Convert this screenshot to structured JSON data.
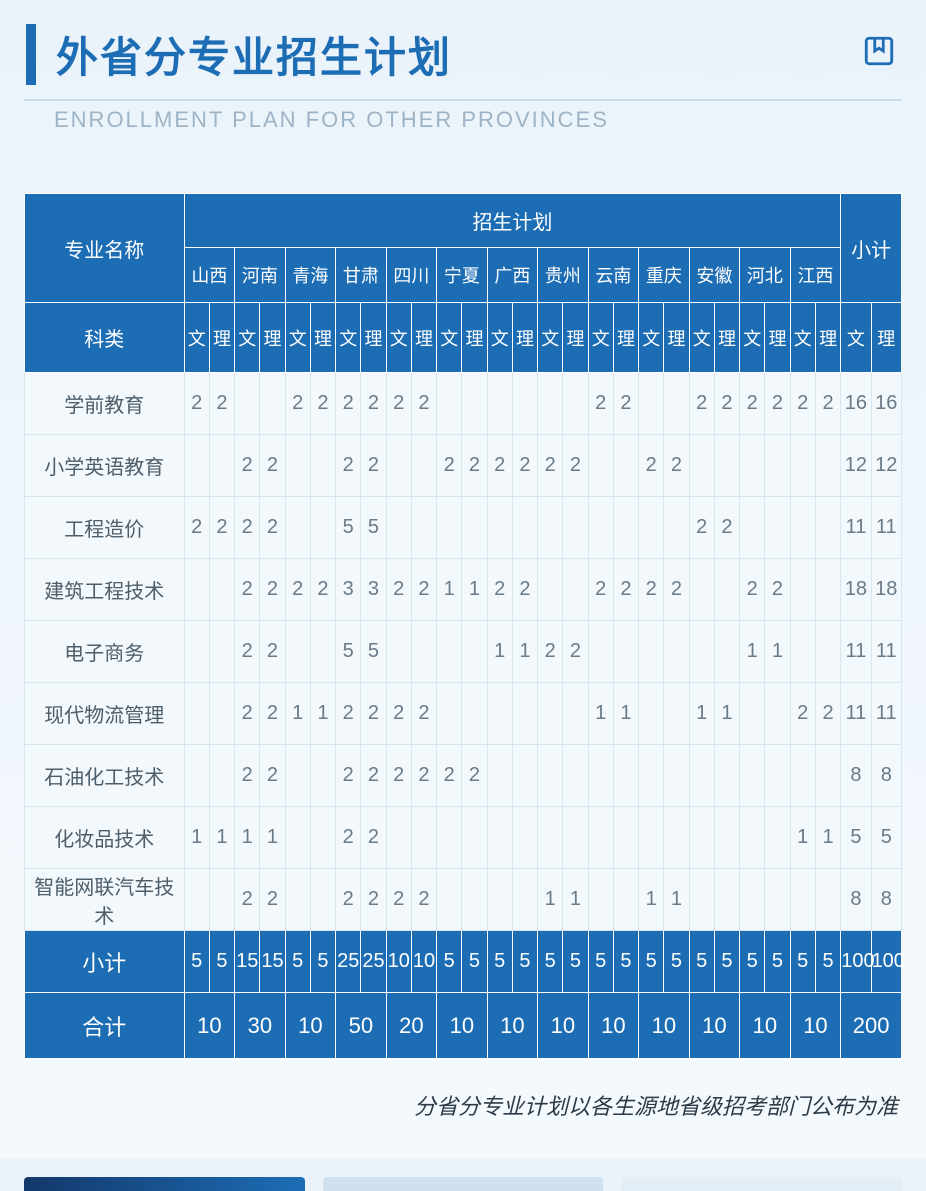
{
  "header": {
    "title_cn": "外省分专业招生计划",
    "title_en": "ENROLLMENT PLAN FOR OTHER PROVINCES"
  },
  "table": {
    "col_major": "专业名称",
    "col_plan": "招生计划",
    "col_subtotal": "小计",
    "col_category": "科类",
    "wen": "文",
    "li": "理",
    "provinces": [
      "山西",
      "河南",
      "青海",
      "甘肃",
      "四川",
      "宁夏",
      "广西",
      "贵州",
      "云南",
      "重庆",
      "安徽",
      "河北",
      "江西"
    ],
    "majors": [
      {
        "name": "学前教育",
        "cells": [
          "2",
          "2",
          "",
          "",
          "2",
          "2",
          "2",
          "2",
          "2",
          "2",
          "",
          "",
          "",
          "",
          "",
          "",
          "2",
          "2",
          "",
          "",
          "2",
          "2",
          "2",
          "2",
          "2",
          "2"
        ],
        "subW": "16",
        "subL": "16"
      },
      {
        "name": "小学英语教育",
        "cells": [
          "",
          "",
          "2",
          "2",
          "",
          "",
          "2",
          "2",
          "",
          "",
          "2",
          "2",
          "2",
          "2",
          "2",
          "2",
          "",
          "",
          "2",
          "2",
          "",
          "",
          "",
          "",
          "",
          ""
        ],
        "subW": "12",
        "subL": "12"
      },
      {
        "name": "工程造价",
        "cells": [
          "2",
          "2",
          "2",
          "2",
          "",
          "",
          "5",
          "5",
          "",
          "",
          "",
          "",
          "",
          "",
          "",
          "",
          "",
          "",
          "",
          "",
          "2",
          "2",
          "",
          "",
          "",
          ""
        ],
        "subW": "11",
        "subL": "11"
      },
      {
        "name": "建筑工程技术",
        "cells": [
          "",
          "",
          "2",
          "2",
          "2",
          "2",
          "3",
          "3",
          "2",
          "2",
          "1",
          "1",
          "2",
          "2",
          "",
          "",
          "2",
          "2",
          "2",
          "2",
          "",
          "",
          "2",
          "2",
          "",
          ""
        ],
        "subW": "18",
        "subL": "18"
      },
      {
        "name": "电子商务",
        "cells": [
          "",
          "",
          "2",
          "2",
          "",
          "",
          "5",
          "5",
          "",
          "",
          "",
          "",
          "1",
          "1",
          "2",
          "2",
          "",
          "",
          "",
          "",
          "",
          "",
          "1",
          "1",
          "",
          ""
        ],
        "subW": "11",
        "subL": "11"
      },
      {
        "name": "现代物流管理",
        "cells": [
          "",
          "",
          "2",
          "2",
          "1",
          "1",
          "2",
          "2",
          "2",
          "2",
          "",
          "",
          "",
          "",
          "",
          "",
          "1",
          "1",
          "",
          "",
          "1",
          "1",
          "",
          "",
          "2",
          "2"
        ],
        "subW": "11",
        "subL": "11"
      },
      {
        "name": "石油化工技术",
        "cells": [
          "",
          "",
          "2",
          "2",
          "",
          "",
          "2",
          "2",
          "2",
          "2",
          "2",
          "2",
          "",
          "",
          "",
          "",
          "",
          "",
          "",
          "",
          "",
          "",
          "",
          "",
          "",
          ""
        ],
        "subW": "8",
        "subL": "8"
      },
      {
        "name": "化妆品技术",
        "cells": [
          "1",
          "1",
          "1",
          "1",
          "",
          "",
          "2",
          "2",
          "",
          "",
          "",
          "",
          "",
          "",
          "",
          "",
          "",
          "",
          "",
          "",
          "",
          "",
          "",
          "",
          "1",
          "1"
        ],
        "subW": "5",
        "subL": "5"
      },
      {
        "name": "智能网联汽车技术",
        "cells": [
          "",
          "",
          "2",
          "2",
          "",
          "",
          "2",
          "2",
          "2",
          "2",
          "",
          "",
          "",
          "",
          "1",
          "1",
          "",
          "",
          "1",
          "1",
          "",
          "",
          "",
          "",
          "",
          ""
        ],
        "subW": "8",
        "subL": "8"
      }
    ],
    "subtotal_label": "小计",
    "subtotal_cells": [
      "5",
      "5",
      "15",
      "15",
      "5",
      "5",
      "25",
      "25",
      "10",
      "10",
      "5",
      "5",
      "5",
      "5",
      "5",
      "5",
      "5",
      "5",
      "5",
      "5",
      "5",
      "5",
      "5",
      "5",
      "5",
      "5"
    ],
    "subtotal_subW": "100",
    "subtotal_subL": "100",
    "total_label": "合计",
    "total_cells": [
      "10",
      "30",
      "10",
      "50",
      "20",
      "10",
      "10",
      "10",
      "10",
      "10",
      "10",
      "10",
      "10"
    ],
    "total_grand": "200"
  },
  "footnote": "分省分专业计划以各生源地省级招考部门公布为准"
}
